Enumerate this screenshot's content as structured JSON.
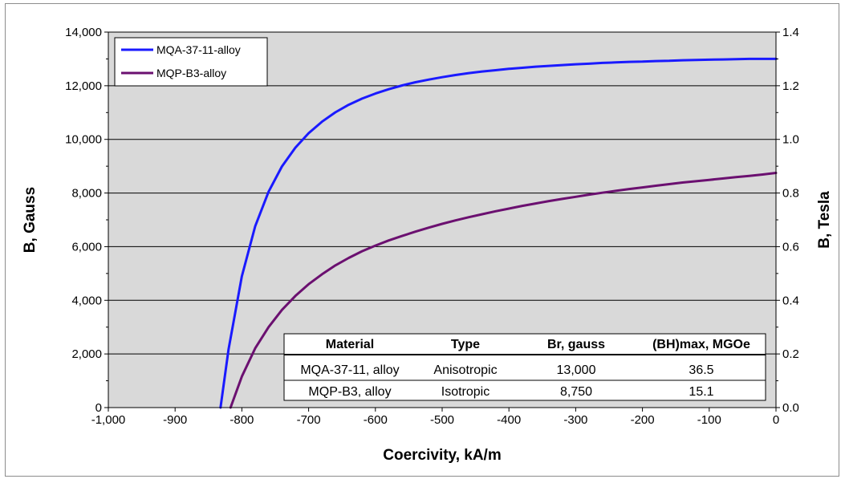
{
  "chart_data": {
    "type": "line",
    "title": "",
    "xlabel": "Coercivity, kA/m",
    "ylabel": "B, Gauss",
    "y2label": "B, Tesla",
    "xlim": [
      -1000,
      0
    ],
    "ylim": [
      0,
      14000
    ],
    "y2lim": [
      0,
      1.4
    ],
    "grid": true,
    "legend_position": "top-left",
    "x_ticks": [
      "-1,000",
      "-900",
      "-800",
      "-700",
      "-600",
      "-500",
      "-400",
      "-300",
      "-200",
      "-100",
      "0"
    ],
    "x_tick_values": [
      -1000,
      -900,
      -800,
      -700,
      -600,
      -500,
      -400,
      -300,
      -200,
      -100,
      0
    ],
    "y_ticks": [
      "0",
      "2,000",
      "4,000",
      "6,000",
      "8,000",
      "10,000",
      "12,000",
      "14,000"
    ],
    "y_tick_values": [
      0,
      2000,
      4000,
      6000,
      8000,
      10000,
      12000,
      14000
    ],
    "y2_ticks": [
      "0.0",
      "0.2",
      "0.4",
      "0.6",
      "0.8",
      "1.0",
      "1.2",
      "1.4"
    ],
    "series": [
      {
        "name": "MQA-37-11-alloy",
        "color": "#1a1aff",
        "x": [
          -832,
          -820,
          -800,
          -780,
          -760,
          -740,
          -720,
          -700,
          -680,
          -660,
          -640,
          -620,
          -600,
          -580,
          -560,
          -540,
          -520,
          -500,
          -480,
          -460,
          -440,
          -420,
          -400,
          -380,
          -360,
          -340,
          -320,
          -300,
          -280,
          -260,
          -240,
          -220,
          -200,
          -180,
          -160,
          -140,
          -120,
          -100,
          -80,
          -60,
          -40,
          -20,
          0
        ],
        "y": [
          0,
          2170,
          4900,
          6760,
          8050,
          8990,
          9690,
          10230,
          10660,
          11010,
          11290,
          11520,
          11710,
          11870,
          12010,
          12130,
          12230,
          12320,
          12400,
          12470,
          12530,
          12580,
          12630,
          12670,
          12710,
          12740,
          12770,
          12800,
          12820,
          12850,
          12870,
          12890,
          12900,
          12920,
          12930,
          12950,
          12960,
          12970,
          12980,
          12990,
          13000,
          13000,
          13000
        ]
      },
      {
        "name": "MQP-B3-alloy",
        "color": "#6b1070",
        "x": [
          -817,
          -800,
          -780,
          -760,
          -740,
          -720,
          -700,
          -680,
          -660,
          -640,
          -620,
          -600,
          -580,
          -560,
          -540,
          -520,
          -500,
          -480,
          -460,
          -440,
          -420,
          -400,
          -380,
          -360,
          -340,
          -320,
          -300,
          -280,
          -260,
          -240,
          -220,
          -200,
          -180,
          -160,
          -140,
          -120,
          -100,
          -80,
          -60,
          -40,
          -20,
          0
        ],
        "y": [
          0,
          1160,
          2210,
          3000,
          3640,
          4160,
          4600,
          4970,
          5300,
          5580,
          5830,
          6040,
          6230,
          6400,
          6560,
          6710,
          6850,
          6980,
          7100,
          7210,
          7320,
          7420,
          7520,
          7610,
          7700,
          7780,
          7860,
          7940,
          8010,
          8080,
          8150,
          8210,
          8270,
          8330,
          8390,
          8440,
          8490,
          8540,
          8590,
          8640,
          8690,
          8750
        ]
      }
    ],
    "legend": [
      "MQA-37-11-alloy",
      "MQP-B3-alloy"
    ],
    "table": {
      "headers": [
        "Material",
        "Type",
        "Br, gauss",
        "(BH)max, MGOe"
      ],
      "rows": [
        [
          "MQA-37-11, alloy",
          "Anisotropic",
          "13,000",
          "36.5"
        ],
        [
          "MQP-B3, alloy",
          "Isotropic",
          "8,750",
          "15.1"
        ]
      ]
    }
  }
}
